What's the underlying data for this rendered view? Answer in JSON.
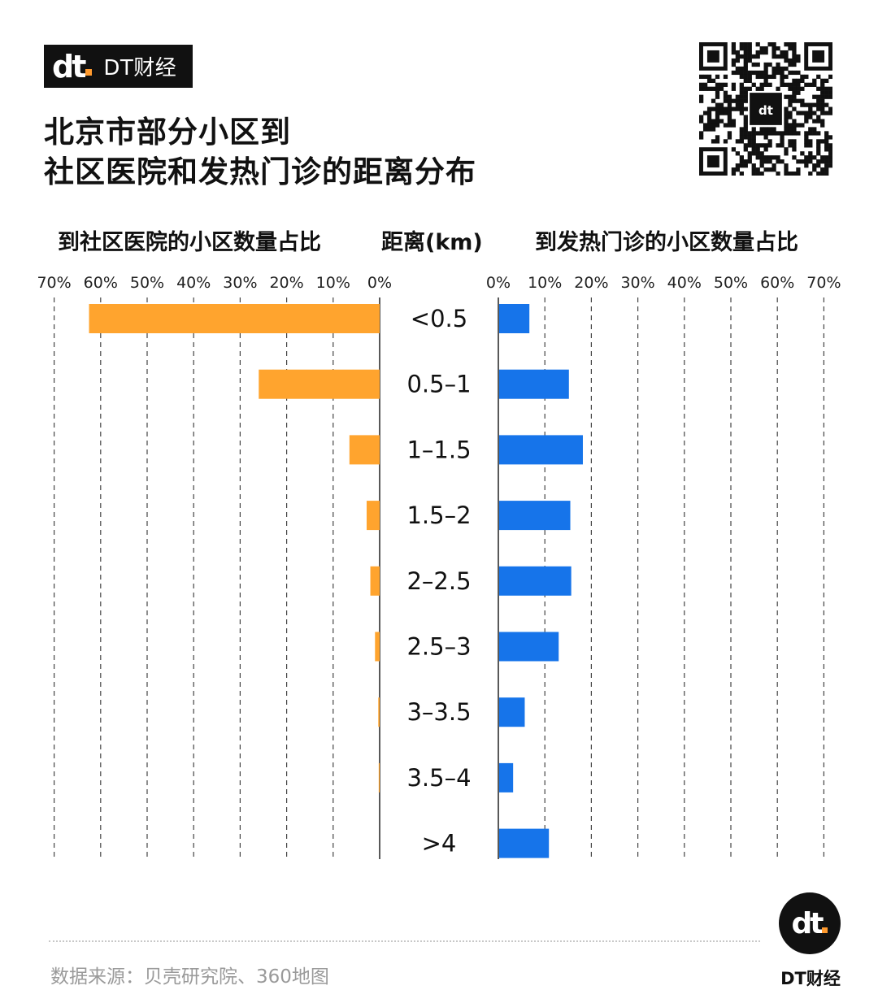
{
  "brand": {
    "logo": "dt",
    "name": "DT财经"
  },
  "title": {
    "line1": "北京市部分小区到",
    "line2": "社区医院和发热门诊的距离分布"
  },
  "qr_icon": "qr-code-icon",
  "headers": {
    "left": "到社区医院的小区数量占比",
    "middle": "距离(km)",
    "right": "到发热门诊的小区数量占比"
  },
  "chart_data": {
    "type": "bar",
    "orientation": "horizontal",
    "layout": "back-to-back",
    "categories": [
      "<0.5",
      "0.5–1",
      "1–1.5",
      "1.5–2",
      "2–2.5",
      "2.5–3",
      "3–3.5",
      "3.5–4",
      ">4"
    ],
    "series": [
      {
        "name": "到社区医院的小区数量占比",
        "values": [
          62.5,
          26,
          6.5,
          2.8,
          2,
          1,
          0.3,
          0.2,
          0
        ],
        "color": "#FFA42E",
        "side": "left"
      },
      {
        "name": "到发热门诊的小区数量占比",
        "values": [
          6.5,
          15,
          18,
          15.3,
          15.5,
          12.8,
          5.5,
          3,
          10.7
        ],
        "color": "#1674EA",
        "side": "right"
      }
    ],
    "xlim": [
      0,
      70
    ],
    "ticks": [
      70,
      60,
      50,
      40,
      30,
      20,
      10,
      0
    ],
    "tick_labels_left": [
      "70%",
      "60%",
      "50%",
      "40%",
      "30%",
      "20%",
      "10%",
      "0%"
    ],
    "tick_labels_right": [
      "0%",
      "10%",
      "20%",
      "30%",
      "40%",
      "50%",
      "60%",
      "70%"
    ],
    "grid": "dashed vertical",
    "ylabel": "距离(km)"
  },
  "source": "数据来源：贝壳研究院、360地图",
  "footer": {
    "logo": "dt",
    "brand": "DT财经"
  }
}
